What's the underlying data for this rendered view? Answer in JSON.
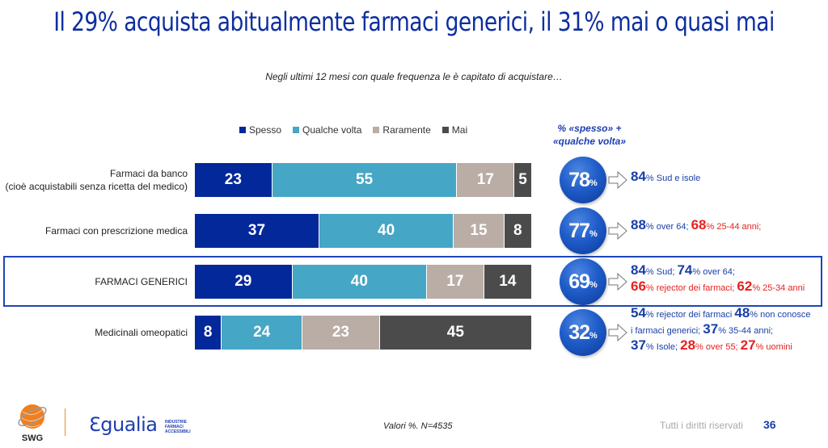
{
  "title": "Il 29% acquista abitualmente farmaci generici, il 31% mai o quasi mai",
  "subtitle": "Negli ultimi 12 mesi con quale frequenza le è capitato di acquistare…",
  "right_header": [
    "% «spesso» +",
    "«qualche volta»"
  ],
  "colors": {
    "Spesso": "#03289a",
    "Qualche volta": "#45a6c5",
    "Raramente": "#b9ada6",
    "Mai": "#4b4b4b",
    "highlight_border": "#1f45b8",
    "note_blue": "#1a3ea8",
    "note_red": "#e8201f"
  },
  "chart_data": {
    "type": "bar",
    "orientation": "horizontal",
    "stacked": true,
    "title": "Negli ultimi 12 mesi con quale frequenza le è capitato di acquistare…",
    "xlabel": "",
    "ylabel": "",
    "xlim": [
      0,
      100
    ],
    "legend_position": "top",
    "categories": [
      "Farmaci da banco (cioè acquistabili senza ricetta del medico)",
      "Farmaci con prescrizione medica",
      "FARMACI GENERICI",
      "Medicinali omeopatici"
    ],
    "category_lines": [
      [
        "Farmaci da banco",
        "(cioè acquistabili senza ricetta del medico)"
      ],
      [
        "Farmaci con prescrizione medica"
      ],
      [
        "FARMACI GENERICI"
      ],
      [
        "Medicinali omeopatici"
      ]
    ],
    "series": [
      {
        "name": "Spesso",
        "values": [
          23,
          37,
          29,
          8
        ]
      },
      {
        "name": "Qualche volta",
        "values": [
          55,
          40,
          40,
          24
        ]
      },
      {
        "name": "Raramente",
        "values": [
          17,
          15,
          17,
          23
        ]
      },
      {
        "name": "Mai",
        "values": [
          5,
          8,
          14,
          45
        ]
      }
    ],
    "totals_spesso_qualche_volta": [
      78,
      77,
      69,
      32
    ],
    "highlighted_category": "FARMACI GENERICI"
  },
  "notes": [
    [
      [
        {
          "n": "84",
          "t": "% Sud e isole",
          "c": "b"
        }
      ]
    ],
    [
      [
        {
          "n": "88",
          "t": "% over 64; ",
          "c": "b"
        },
        {
          "n": "68",
          "t": "% 25-44 anni;",
          "c": "r"
        }
      ]
    ],
    [
      [
        {
          "n": "84",
          "t": "% Sud; ",
          "c": "b"
        },
        {
          "n": "74",
          "t": "% over 64;",
          "c": "b"
        }
      ],
      [
        {
          "n": "66",
          "t": "% rejector dei farmaci; ",
          "c": "r"
        },
        {
          "n": "62",
          "t": "% 25-34 anni",
          "c": "r"
        }
      ]
    ],
    [
      [
        {
          "n": "54",
          "t": "% rejector dei farmaci ",
          "c": "b"
        },
        {
          "n": "48",
          "t": "% non conosce",
          "c": "b"
        }
      ],
      [
        {
          "n": "",
          "t": "i farmaci generici; ",
          "c": "b"
        },
        {
          "n": "37",
          "t": "% 35-44 anni;",
          "c": "b"
        }
      ],
      [
        {
          "n": "37",
          "t": "% Isole; ",
          "c": "b"
        },
        {
          "n": "28",
          "t": "% over 55; ",
          "c": "r"
        },
        {
          "n": "27",
          "t": "% uomini",
          "c": "r"
        }
      ]
    ]
  ],
  "pct_symbol": "%",
  "footer": {
    "note": "Valori %. N=4535",
    "rights": "Tutti i diritti riservati",
    "page": "36",
    "logo_swg": "SWG",
    "logo_egualia": "Ɛgualia",
    "logo_egualia_sub": [
      "INDUSTRIE",
      "FARMACI",
      "ACCESSIBILI"
    ]
  }
}
